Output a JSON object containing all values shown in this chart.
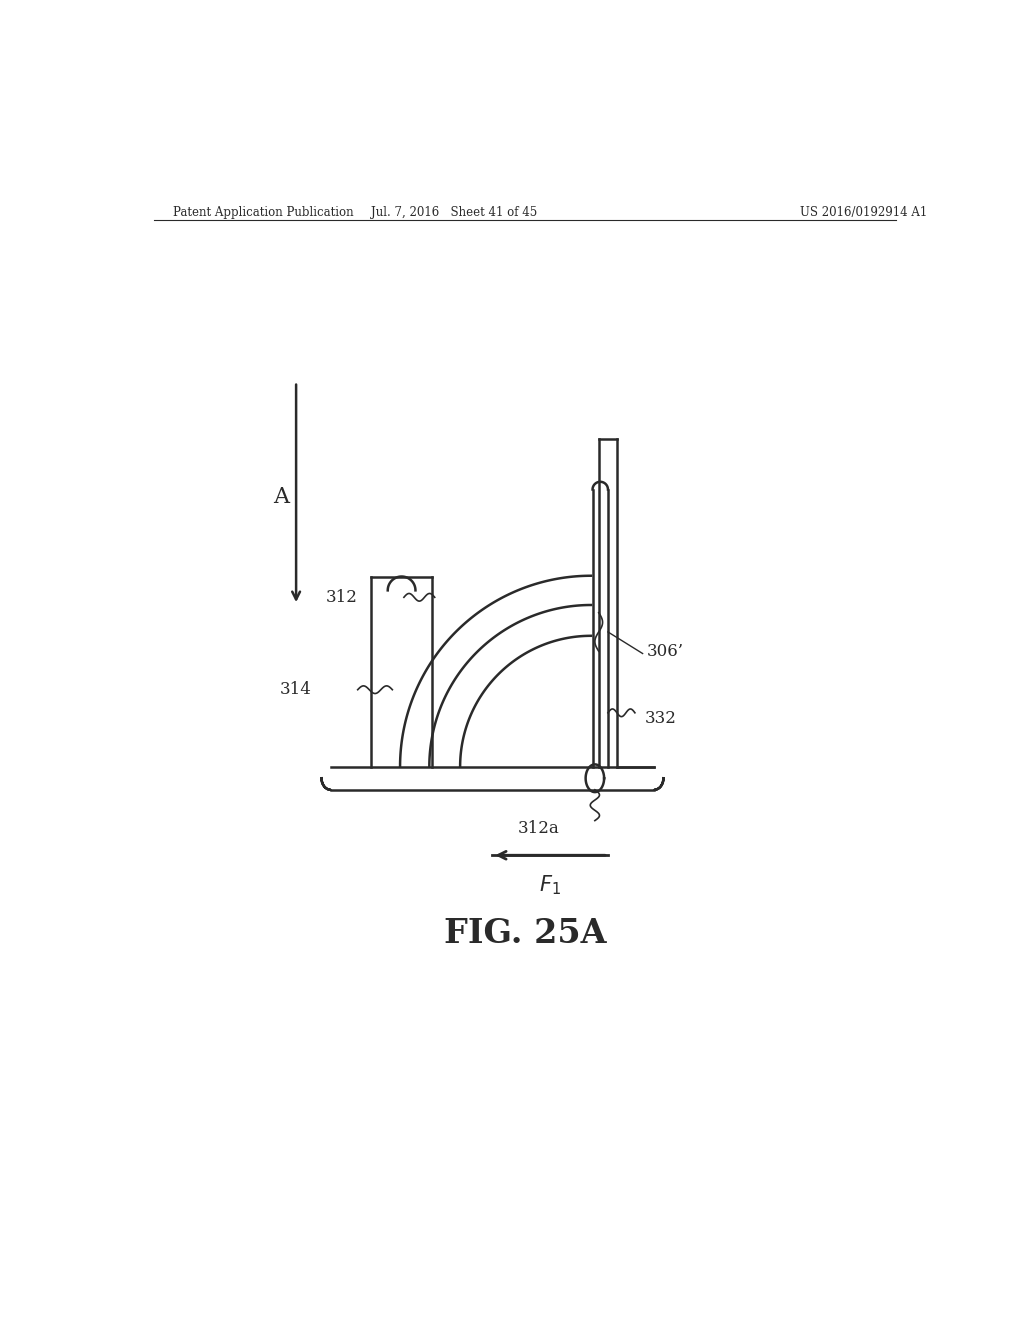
{
  "bg_color": "#ffffff",
  "line_color": "#2a2a2a",
  "header_left": "Patent Application Publication",
  "header_mid": "Jul. 7, 2016   Sheet 41 of 45",
  "header_right": "US 2016/0192914 A1",
  "fig_label": "FIG. 25A",
  "label_A": "A",
  "label_306": "306’",
  "label_312": "312",
  "label_312a": "312a",
  "label_314": "314",
  "label_332": "332",
  "label_F1": "F1"
}
